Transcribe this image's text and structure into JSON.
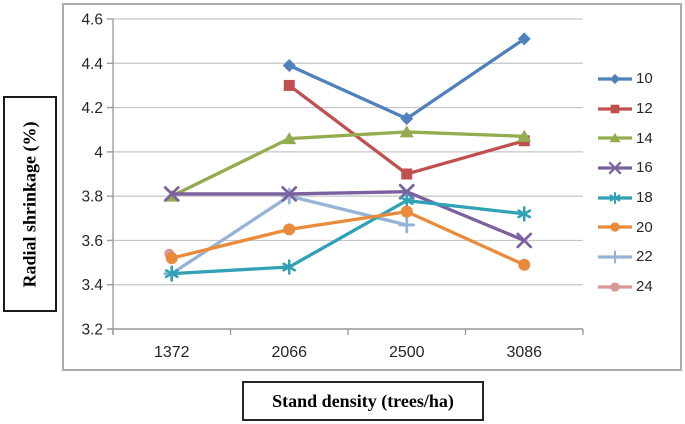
{
  "chart_data": {
    "type": "line",
    "title": "",
    "xlabel": "Stand density (trees/ha)",
    "ylabel": "Radial shrinkage (%)",
    "categories": [
      "1372",
      "2066",
      "2500",
      "3086"
    ],
    "series": [
      {
        "name": "10",
        "color": "#4F81BD",
        "marker": "diamond",
        "values": [
          null,
          4.39,
          4.15,
          4.51
        ]
      },
      {
        "name": "12",
        "color": "#C0504D",
        "marker": "square",
        "values": [
          null,
          4.3,
          3.9,
          4.05
        ]
      },
      {
        "name": "14",
        "color": "#92AC4F",
        "marker": "triangle",
        "values": [
          3.8,
          4.06,
          4.09,
          4.07
        ]
      },
      {
        "name": "16",
        "color": "#7C61A1",
        "marker": "x",
        "values": [
          3.81,
          3.81,
          3.82,
          3.6
        ]
      },
      {
        "name": "18",
        "color": "#31A2B5",
        "marker": "asterisk",
        "values": [
          3.45,
          3.48,
          3.78,
          3.72
        ]
      },
      {
        "name": "20",
        "color": "#E98B3A",
        "marker": "circle",
        "values": [
          3.52,
          3.65,
          3.73,
          3.49
        ]
      },
      {
        "name": "22",
        "color": "#95B3D7",
        "marker": "plus",
        "values": [
          3.45,
          3.8,
          3.67,
          null
        ]
      },
      {
        "name": "24",
        "color": "#D99694",
        "marker": "circle-small",
        "values": [
          3.54,
          null,
          null,
          null
        ]
      }
    ],
    "ylim": [
      3.2,
      4.6
    ],
    "yticks": [
      "4.6",
      "4.4",
      "4.2",
      "4",
      "3.8",
      "3.6",
      "3.4",
      "3.2"
    ],
    "grid": true,
    "legend_position": "right",
    "draw_order": [
      7,
      6,
      0,
      1,
      2,
      3,
      4,
      5
    ]
  }
}
